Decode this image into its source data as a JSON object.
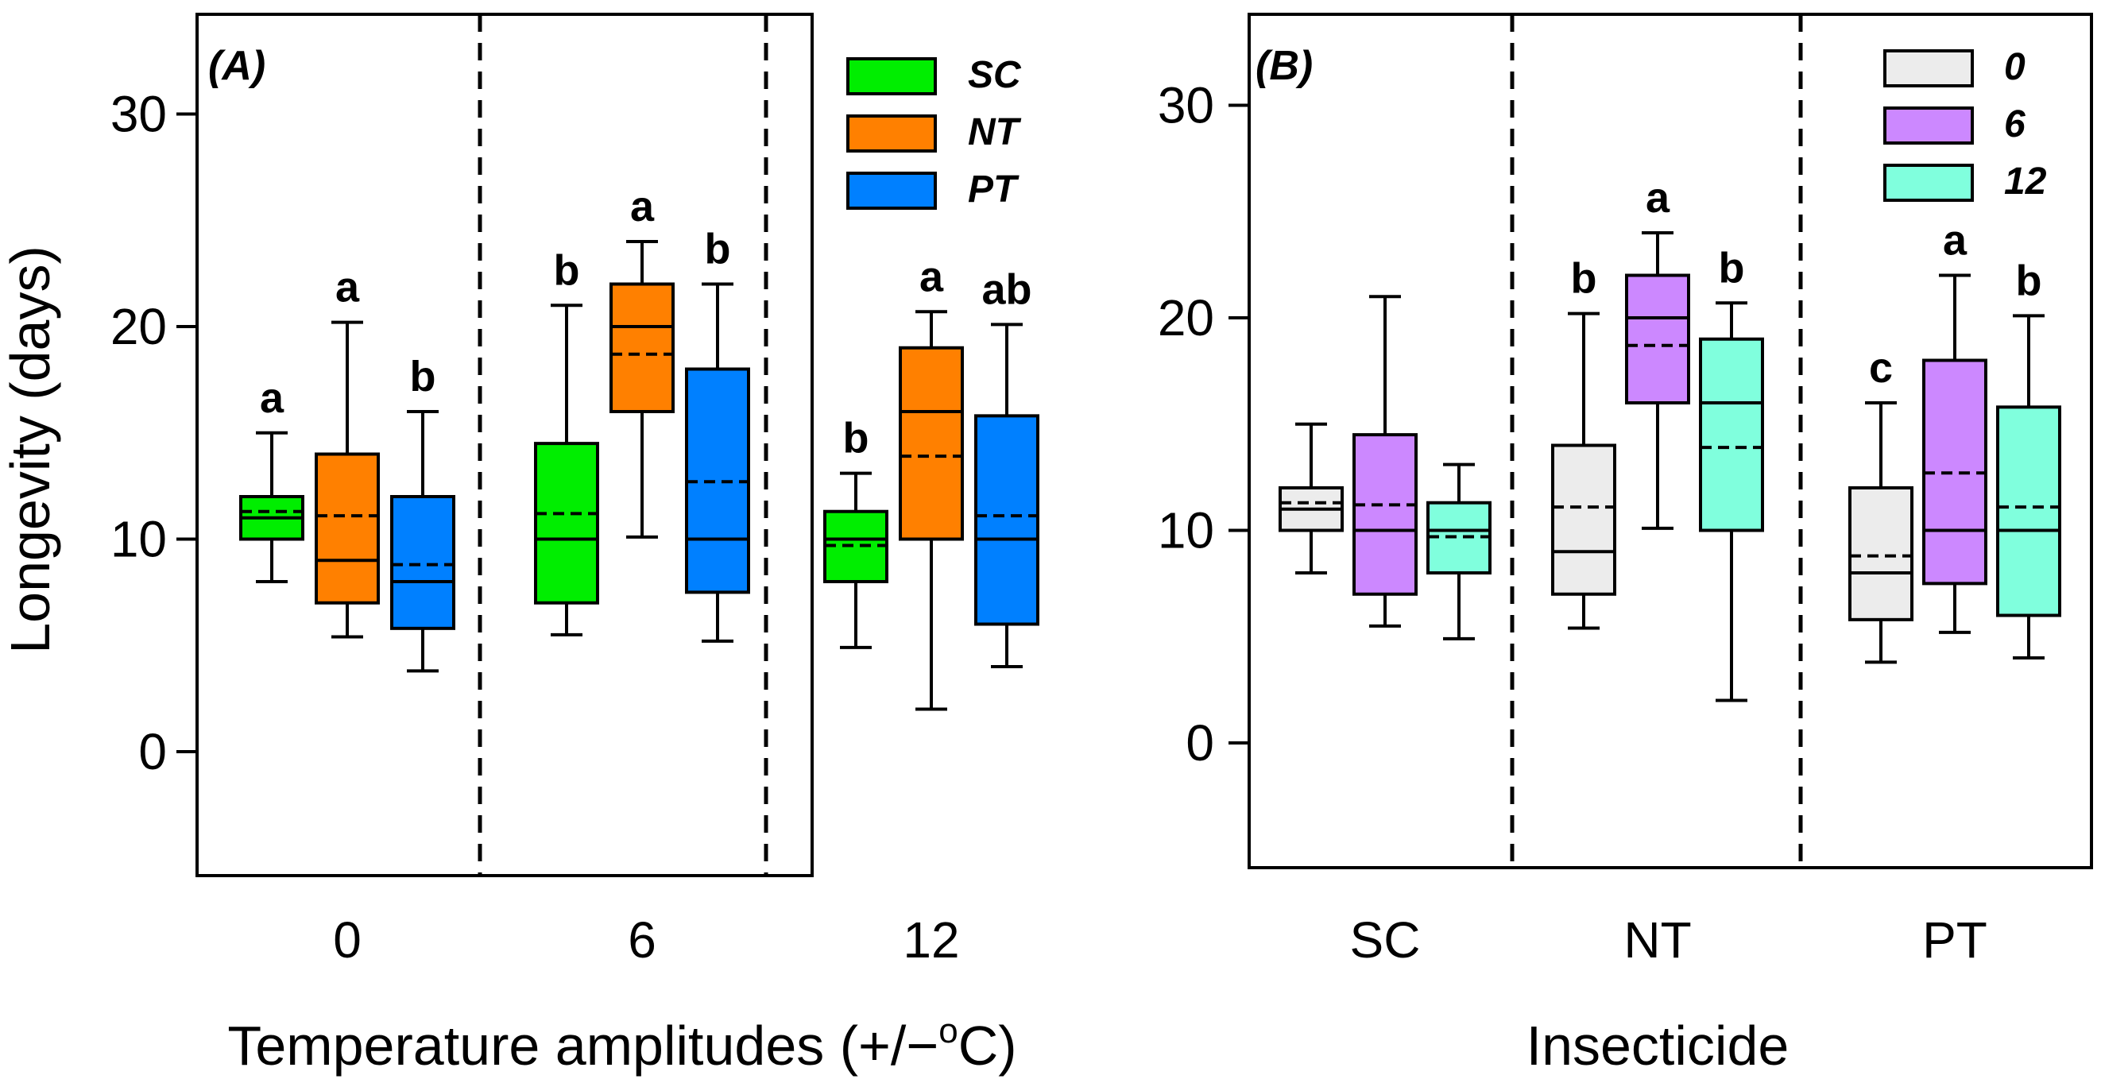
{
  "figure": {
    "y_axis_label": "Longevity (days)"
  },
  "chart_data": [
    {
      "type": "box",
      "panel_label": "(A)",
      "xlabel": "Temperature amplitudes (+/−°C)",
      "xlabel_parts": [
        "Temperature amplitudes (+/−",
        "o",
        "C)"
      ],
      "ylabel": "Longevity (days)",
      "ylim": [
        -6,
        34
      ],
      "yticks": [
        0,
        10,
        20,
        30
      ],
      "yticks_text": [
        "0",
        "10",
        "20",
        "30"
      ],
      "legend_position": "top-right",
      "series": [
        {
          "name": "SC",
          "color": "#00ee00"
        },
        {
          "name": "NT",
          "color": "#ff8000"
        },
        {
          "name": "PT",
          "color": "#0080ff"
        }
      ],
      "groups": [
        {
          "label": "0",
          "boxes": [
            {
              "series": "SC",
              "min": 8,
              "q1": 10,
              "median": 11,
              "mean": 11.3,
              "q3": 12,
              "max": 15,
              "letter": "a"
            },
            {
              "series": "NT",
              "min": 5.4,
              "q1": 7,
              "median": 9,
              "mean": 11.1,
              "q3": 14,
              "max": 20.2,
              "letter": "a"
            },
            {
              "series": "PT",
              "min": 3.8,
              "q1": 5.8,
              "median": 8,
              "mean": 8.8,
              "q3": 12,
              "max": 16,
              "letter": "b"
            }
          ]
        },
        {
          "label": "6",
          "boxes": [
            {
              "series": "SC",
              "min": 5.5,
              "q1": 7,
              "median": 10,
              "mean": 11.2,
              "q3": 14.5,
              "max": 21,
              "letter": "b"
            },
            {
              "series": "NT",
              "min": 10.1,
              "q1": 16,
              "median": 20,
              "mean": 18.7,
              "q3": 22,
              "max": 24,
              "letter": "a"
            },
            {
              "series": "PT",
              "min": 5.2,
              "q1": 7.5,
              "median": 10,
              "mean": 12.7,
              "q3": 18,
              "max": 22,
              "letter": "b"
            }
          ]
        },
        {
          "label": "12",
          "boxes": [
            {
              "series": "SC",
              "min": 4.9,
              "q1": 8,
              "median": 10,
              "mean": 9.7,
              "q3": 11.3,
              "max": 13.1,
              "letter": "b"
            },
            {
              "series": "NT",
              "min": 2,
              "q1": 10,
              "median": 16,
              "mean": 13.9,
              "q3": 19,
              "max": 20.7,
              "letter": "a"
            },
            {
              "series": "PT",
              "min": 4,
              "q1": 6,
              "median": 10,
              "mean": 11.1,
              "q3": 15.8,
              "max": 20.1,
              "letter": "ab"
            }
          ]
        }
      ]
    },
    {
      "type": "box",
      "panel_label": "(B)",
      "xlabel": "Insecticide",
      "ylabel": "Longevity (days)",
      "ylim": [
        -6,
        34
      ],
      "yticks": [
        0,
        10,
        20,
        30
      ],
      "yticks_text": [
        "0",
        "10",
        "20",
        "30"
      ],
      "legend_position": "top-right",
      "series": [
        {
          "name": "0",
          "color": "#ececec"
        },
        {
          "name": "6",
          "color": "#cc88ff"
        },
        {
          "name": "12",
          "color": "#80ffdd"
        }
      ],
      "groups": [
        {
          "label": "SC",
          "boxes": [
            {
              "series": "0",
              "min": 8,
              "q1": 10,
              "median": 11,
              "mean": 11.3,
              "q3": 12,
              "max": 15,
              "letter": ""
            },
            {
              "series": "6",
              "min": 5.5,
              "q1": 7,
              "median": 10,
              "mean": 11.2,
              "q3": 14.5,
              "max": 21,
              "letter": ""
            },
            {
              "series": "12",
              "min": 4.9,
              "q1": 8,
              "median": 10,
              "mean": 9.7,
              "q3": 11.3,
              "max": 13.1,
              "letter": ""
            }
          ]
        },
        {
          "label": "NT",
          "boxes": [
            {
              "series": "0",
              "min": 5.4,
              "q1": 7,
              "median": 9,
              "mean": 11.1,
              "q3": 14,
              "max": 20.2,
              "letter": "b"
            },
            {
              "series": "6",
              "min": 10.1,
              "q1": 16,
              "median": 20,
              "mean": 18.7,
              "q3": 22,
              "max": 24,
              "letter": "a"
            },
            {
              "series": "12",
              "min": 2,
              "q1": 10,
              "median": 16,
              "mean": 13.9,
              "q3": 19,
              "max": 20.7,
              "letter": "b"
            }
          ]
        },
        {
          "label": "PT",
          "boxes": [
            {
              "series": "0",
              "min": 3.8,
              "q1": 5.8,
              "median": 8,
              "mean": 8.8,
              "q3": 12,
              "max": 16,
              "letter": "c"
            },
            {
              "series": "6",
              "min": 5.2,
              "q1": 7.5,
              "median": 10,
              "mean": 12.7,
              "q3": 18,
              "max": 22,
              "letter": "a"
            },
            {
              "series": "12",
              "min": 4,
              "q1": 6,
              "median": 10,
              "mean": 11.1,
              "q3": 15.8,
              "max": 20.1,
              "letter": "b"
            }
          ]
        }
      ]
    }
  ]
}
